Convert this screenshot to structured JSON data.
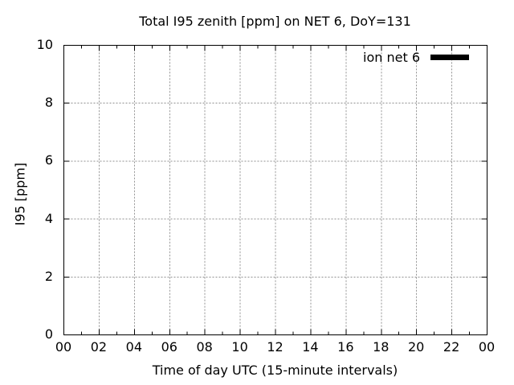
{
  "chart_data": {
    "type": "line",
    "title": "Total I95 zenith [ppm] on NET 6, DoY=131",
    "xlabel": "Time of day UTC (15-minute intervals)",
    "ylabel": "I95 [ppm]",
    "xlim": [
      0,
      24
    ],
    "ylim": [
      0,
      10
    ],
    "x_major_ticks": [
      0,
      2,
      4,
      6,
      8,
      10,
      12,
      14,
      16,
      18,
      20,
      22,
      24
    ],
    "x_tick_labels": [
      "00",
      "02",
      "04",
      "06",
      "08",
      "10",
      "12",
      "14",
      "16",
      "18",
      "20",
      "22",
      "00"
    ],
    "x_minor_ticks": [
      1,
      3,
      5,
      7,
      9,
      11,
      13,
      15,
      17,
      19,
      21,
      23
    ],
    "y_major_ticks": [
      0,
      2,
      4,
      6,
      8,
      10
    ],
    "y_tick_labels": [
      "0",
      "2",
      "4",
      "6",
      "8",
      "10"
    ],
    "grid": "dotted, on major ticks only",
    "grid_color": "#909090",
    "axis_color": "#000000",
    "background_color": "#ffffff",
    "legend": {
      "position": "top-right-inside",
      "entries": [
        {
          "label": "ion net 6",
          "color": "#000000",
          "sample": "thick-line"
        }
      ]
    },
    "series": [
      {
        "name": "ion net 6",
        "color": "#000000",
        "points": []
      }
    ]
  }
}
